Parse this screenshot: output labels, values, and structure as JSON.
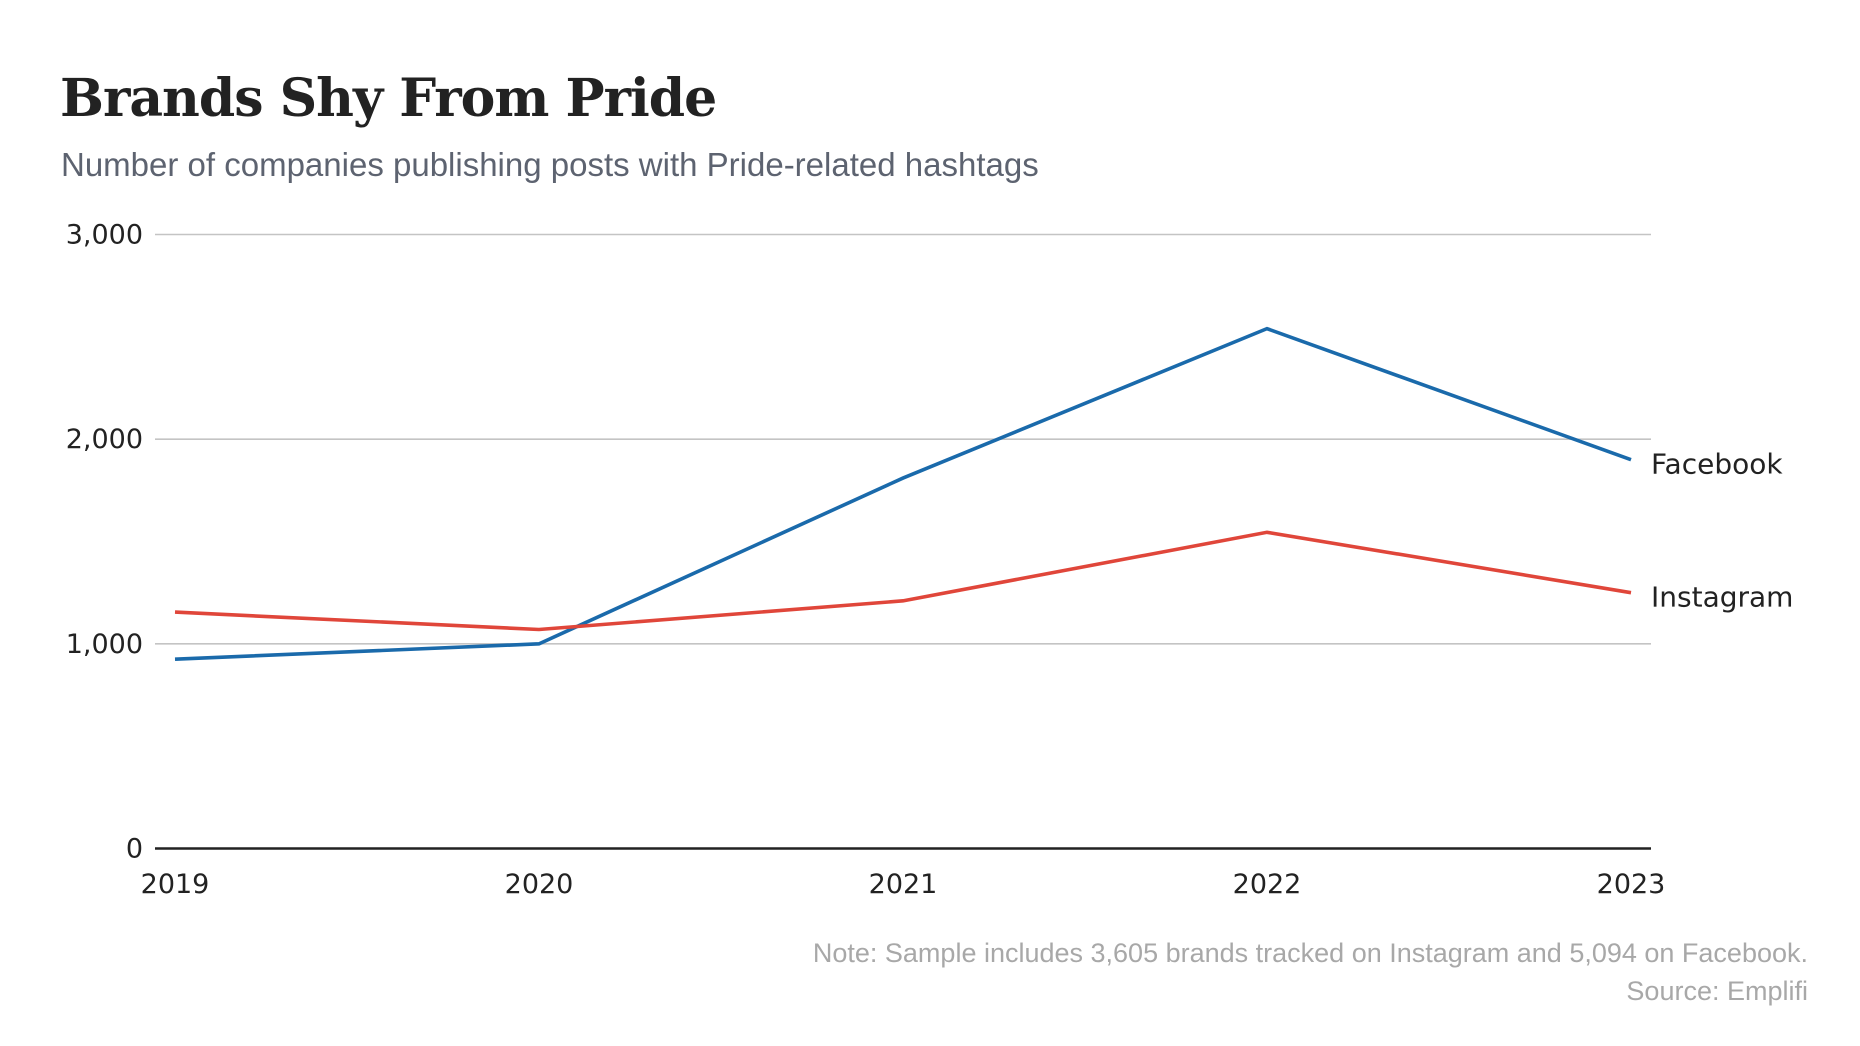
{
  "header": {
    "title": "Brands Shy From Pride",
    "subtitle": "Number of companies publishing posts with Pride-related hashtags"
  },
  "footer": {
    "note": "Note: Sample includes 3,605 brands tracked on Instagram and 5,094 on Facebook.",
    "source": "Source: Emplifi"
  },
  "chart_data": {
    "type": "line",
    "title": "Brands Shy From Pride",
    "subtitle": "Number of companies publishing posts with Pride-related hashtags",
    "xlabel": "",
    "ylabel": "",
    "x": [
      "2019",
      "2020",
      "2021",
      "2022",
      "2023"
    ],
    "ylim": [
      0,
      3000
    ],
    "yticks": [
      0,
      1000,
      2000,
      3000
    ],
    "ytick_labels": [
      "0",
      "1,000",
      "2,000",
      "3,000"
    ],
    "grid": true,
    "legend": "direct labels at line ends (right)",
    "series": [
      {
        "name": "Facebook",
        "color": "#1a6aab",
        "values": [
          925,
          1000,
          1810,
          2540,
          1900
        ]
      },
      {
        "name": "Instagram",
        "color": "#e0463a",
        "values": [
          1155,
          1070,
          1210,
          1545,
          1250
        ]
      }
    ]
  }
}
